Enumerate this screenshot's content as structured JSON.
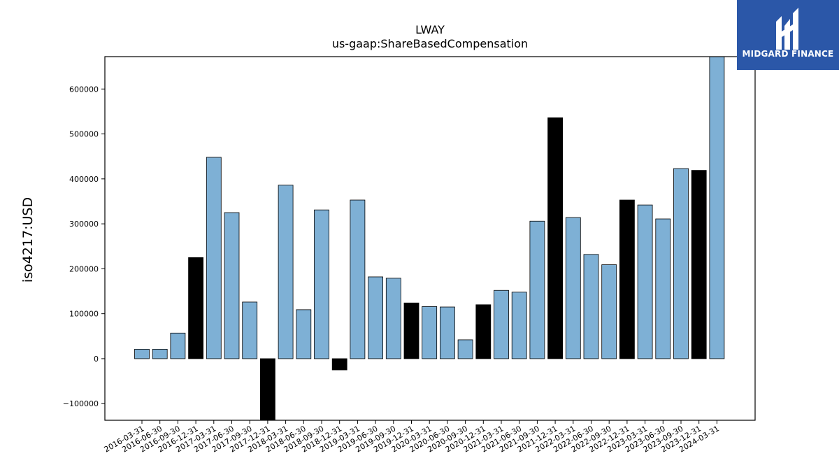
{
  "brand": {
    "name": "MIDGARD FINANCE",
    "bg_color": "#2b57a8"
  },
  "chart_data": {
    "type": "bar",
    "title": "LWAY",
    "subtitle": "us-gaap:ShareBasedCompensation",
    "xlabel": "",
    "ylabel": "iso4217:USD",
    "ylim": [
      -137000,
      672000
    ],
    "yticks": [
      -100000,
      0,
      100000,
      200000,
      300000,
      400000,
      500000,
      600000
    ],
    "grid": false,
    "colors": {
      "quarterly": "#7eb0d5",
      "annual": "#000000"
    },
    "categories": [
      "2016-03-31",
      "2016-06-30",
      "2016-09-30",
      "2016-12-31",
      "2017-03-31",
      "2017-06-30",
      "2017-09-30",
      "2017-12-31",
      "2018-03-31",
      "2018-06-30",
      "2018-09-30",
      "2018-12-31",
      "2019-03-31",
      "2019-06-30",
      "2019-09-30",
      "2019-12-31",
      "2020-03-31",
      "2020-06-30",
      "2020-09-30",
      "2020-12-31",
      "2021-03-31",
      "2021-06-30",
      "2021-09-30",
      "2021-12-31",
      "2022-03-31",
      "2022-06-30",
      "2022-09-30",
      "2022-12-31",
      "2023-03-31",
      "2023-06-30",
      "2023-09-30",
      "2023-12-31",
      "2024-03-31"
    ],
    "values": [
      21000,
      21000,
      57000,
      225000,
      448000,
      325000,
      126000,
      -137000,
      386000,
      109000,
      331000,
      -25000,
      353000,
      182000,
      179000,
      124000,
      116000,
      115000,
      42000,
      120000,
      152000,
      148000,
      306000,
      536000,
      314000,
      232000,
      209000,
      353000,
      342000,
      311000,
      423000,
      419000,
      672000
    ],
    "highlight": [
      false,
      false,
      false,
      true,
      false,
      false,
      false,
      true,
      false,
      false,
      false,
      true,
      false,
      false,
      false,
      true,
      false,
      false,
      false,
      true,
      false,
      false,
      false,
      true,
      false,
      false,
      false,
      true,
      false,
      false,
      false,
      true,
      false
    ]
  }
}
